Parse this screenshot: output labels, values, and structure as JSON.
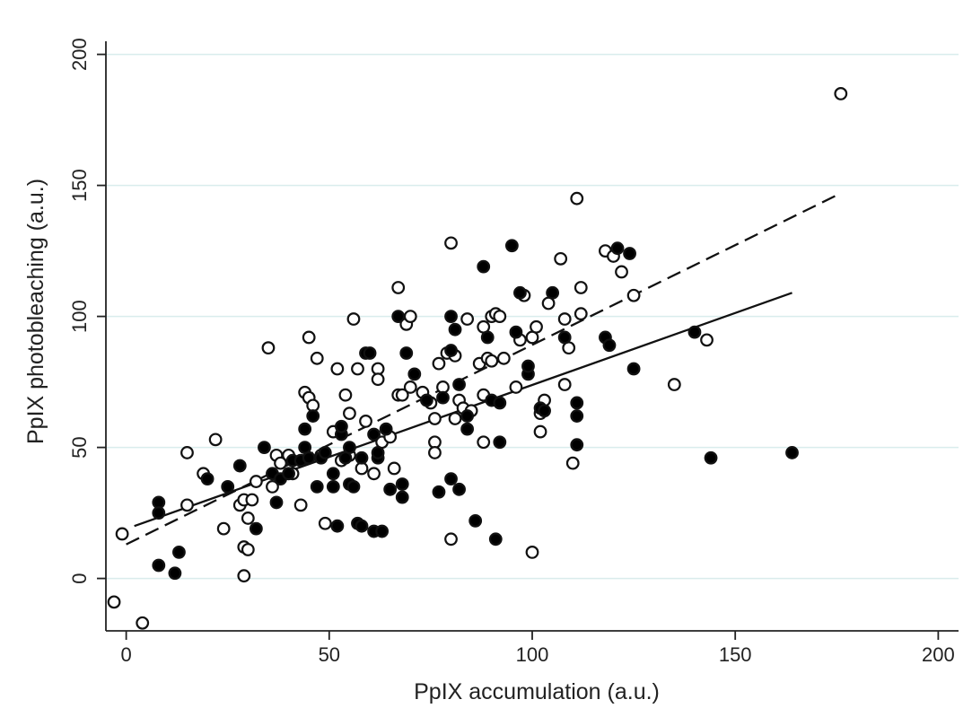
{
  "chart_data": {
    "type": "scatter",
    "xlabel": "PpIX accumulation (a.u.)",
    "ylabel": "PpIX photobleaching (a.u.)",
    "xlim": [
      -5,
      205
    ],
    "ylim": [
      -20,
      205
    ],
    "xticks": [
      "0",
      "50",
      "100",
      "150",
      "200"
    ],
    "yticks": [
      "0",
      "50",
      "100",
      "150",
      "200"
    ],
    "grid": "horizontal",
    "legend": "none",
    "colors": {
      "filled": "#000000",
      "hollow_fill": "#ffffff",
      "stroke": "#111111",
      "gridline": "#d9ecec"
    },
    "series": [
      {
        "marker": "hollow-circle",
        "line_style": "dashed",
        "fit": {
          "x": [
            0,
            176
          ],
          "y": [
            13,
            147
          ]
        },
        "points": [
          [
            -3,
            -9
          ],
          [
            -1,
            17
          ],
          [
            4,
            -17
          ],
          [
            15,
            48
          ],
          [
            15,
            28
          ],
          [
            19,
            40
          ],
          [
            22,
            53
          ],
          [
            24,
            19
          ],
          [
            28,
            28
          ],
          [
            29,
            12
          ],
          [
            29,
            30
          ],
          [
            29,
            1
          ],
          [
            30,
            23
          ],
          [
            30,
            11
          ],
          [
            31,
            30
          ],
          [
            32,
            37
          ],
          [
            35,
            88
          ],
          [
            36,
            35
          ],
          [
            37,
            47
          ],
          [
            38,
            44
          ],
          [
            40,
            47
          ],
          [
            41,
            40
          ],
          [
            43,
            28
          ],
          [
            44,
            71
          ],
          [
            45,
            92
          ],
          [
            45,
            69
          ],
          [
            46,
            66
          ],
          [
            47,
            84
          ],
          [
            48,
            47
          ],
          [
            49,
            21
          ],
          [
            51,
            56
          ],
          [
            52,
            80
          ],
          [
            53,
            45
          ],
          [
            54,
            70
          ],
          [
            55,
            47
          ],
          [
            55,
            63
          ],
          [
            56,
            99
          ],
          [
            57,
            80
          ],
          [
            58,
            42
          ],
          [
            59,
            60
          ],
          [
            61,
            40
          ],
          [
            62,
            80
          ],
          [
            62,
            76
          ],
          [
            63,
            52
          ],
          [
            65,
            54
          ],
          [
            66,
            42
          ],
          [
            67,
            111
          ],
          [
            67,
            70
          ],
          [
            68,
            70
          ],
          [
            69,
            97
          ],
          [
            70,
            73
          ],
          [
            70,
            100
          ],
          [
            73,
            71
          ],
          [
            75,
            67
          ],
          [
            76,
            52
          ],
          [
            76,
            61
          ],
          [
            76,
            48
          ],
          [
            77,
            82
          ],
          [
            78,
            73
          ],
          [
            79,
            86
          ],
          [
            80,
            128
          ],
          [
            80,
            15
          ],
          [
            81,
            85
          ],
          [
            81,
            61
          ],
          [
            82,
            68
          ],
          [
            83,
            65
          ],
          [
            84,
            99
          ],
          [
            85,
            64
          ],
          [
            87,
            82
          ],
          [
            88,
            96
          ],
          [
            88,
            52
          ],
          [
            88,
            70
          ],
          [
            89,
            84
          ],
          [
            90,
            83
          ],
          [
            90,
            100
          ],
          [
            91,
            101
          ],
          [
            92,
            100
          ],
          [
            93,
            84
          ],
          [
            96,
            73
          ],
          [
            97,
            91
          ],
          [
            98,
            108
          ],
          [
            100,
            10
          ],
          [
            100,
            92
          ],
          [
            101,
            96
          ],
          [
            102,
            56
          ],
          [
            102,
            63
          ],
          [
            103,
            68
          ],
          [
            104,
            105
          ],
          [
            107,
            122
          ],
          [
            108,
            74
          ],
          [
            108,
            99
          ],
          [
            109,
            88
          ],
          [
            110,
            44
          ],
          [
            111,
            145
          ],
          [
            112,
            101
          ],
          [
            112,
            111
          ],
          [
            118,
            125
          ],
          [
            120,
            123
          ],
          [
            122,
            117
          ],
          [
            125,
            108
          ],
          [
            135,
            74
          ],
          [
            143,
            91
          ],
          [
            176,
            185
          ]
        ]
      },
      {
        "marker": "filled-circle",
        "line_style": "solid",
        "fit": {
          "x": [
            2,
            164
          ],
          "y": [
            20,
            109
          ]
        },
        "points": [
          [
            8,
            29
          ],
          [
            8,
            25
          ],
          [
            8,
            5
          ],
          [
            12,
            2
          ],
          [
            13,
            10
          ],
          [
            20,
            38
          ],
          [
            25,
            35
          ],
          [
            28,
            43
          ],
          [
            32,
            19
          ],
          [
            34,
            50
          ],
          [
            36,
            40
          ],
          [
            37,
            29
          ],
          [
            38,
            38
          ],
          [
            40,
            40
          ],
          [
            41,
            45
          ],
          [
            43,
            45
          ],
          [
            44,
            57
          ],
          [
            44,
            50
          ],
          [
            45,
            46
          ],
          [
            46,
            62
          ],
          [
            47,
            35
          ],
          [
            48,
            46
          ],
          [
            49,
            48
          ],
          [
            51,
            40
          ],
          [
            51,
            35
          ],
          [
            52,
            20
          ],
          [
            53,
            55
          ],
          [
            53,
            58
          ],
          [
            54,
            46
          ],
          [
            55,
            50
          ],
          [
            55,
            36
          ],
          [
            56,
            35
          ],
          [
            57,
            21
          ],
          [
            58,
            20
          ],
          [
            58,
            46
          ],
          [
            59,
            86
          ],
          [
            60,
            86
          ],
          [
            61,
            55
          ],
          [
            61,
            18
          ],
          [
            62,
            46
          ],
          [
            62,
            48
          ],
          [
            63,
            18
          ],
          [
            64,
            57
          ],
          [
            65,
            34
          ],
          [
            67,
            100
          ],
          [
            68,
            31
          ],
          [
            68,
            36
          ],
          [
            69,
            86
          ],
          [
            71,
            78
          ],
          [
            74,
            68
          ],
          [
            77,
            33
          ],
          [
            78,
            69
          ],
          [
            80,
            100
          ],
          [
            80,
            38
          ],
          [
            80,
            87
          ],
          [
            81,
            95
          ],
          [
            82,
            34
          ],
          [
            82,
            74
          ],
          [
            84,
            62
          ],
          [
            84,
            57
          ],
          [
            86,
            22
          ],
          [
            88,
            119
          ],
          [
            89,
            92
          ],
          [
            90,
            68
          ],
          [
            91,
            15
          ],
          [
            92,
            67
          ],
          [
            92,
            52
          ],
          [
            95,
            127
          ],
          [
            96,
            94
          ],
          [
            97,
            109
          ],
          [
            99,
            78
          ],
          [
            99,
            81
          ],
          [
            102,
            65
          ],
          [
            103,
            64
          ],
          [
            105,
            109
          ],
          [
            108,
            92
          ],
          [
            111,
            67
          ],
          [
            111,
            62
          ],
          [
            111,
            51
          ],
          [
            118,
            92
          ],
          [
            119,
            89
          ],
          [
            121,
            126
          ],
          [
            124,
            124
          ],
          [
            125,
            80
          ],
          [
            140,
            94
          ],
          [
            144,
            46
          ],
          [
            164,
            48
          ]
        ]
      }
    ]
  }
}
